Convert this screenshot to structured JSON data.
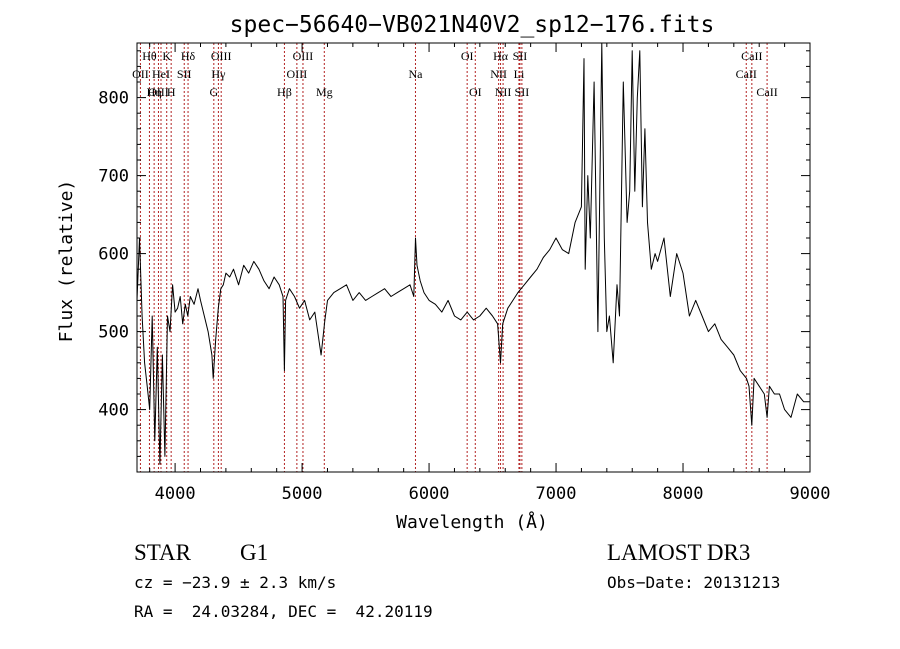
{
  "chart_data": {
    "type": "line",
    "title": "spec−56640−VB021N40V2_sp12−176.fits",
    "xlabel": "Wavelength (Å)",
    "ylabel": "Flux (relative)",
    "xlim": [
      3700,
      9000
    ],
    "ylim": [
      320,
      870
    ],
    "xticks": [
      4000,
      5000,
      6000,
      7000,
      8000,
      9000
    ],
    "yticks": [
      400,
      500,
      600,
      700,
      800
    ],
    "grid": false,
    "series": [
      {
        "values_note": "",
        "x": [
          3700,
          3720,
          3740,
          3760,
          3780,
          3800,
          3820,
          3840,
          3860,
          3880,
          3900,
          3920,
          3940,
          3960,
          3980,
          4000,
          4020,
          4040,
          4060,
          4080,
          4100,
          4120,
          4150,
          4180,
          4200,
          4230,
          4260,
          4290,
          4300,
          4320,
          4340,
          4360,
          4380,
          4400,
          4430,
          4460,
          4500,
          4540,
          4580,
          4620,
          4660,
          4700,
          4740,
          4780,
          4820,
          4850,
          4861,
          4870,
          4900,
          4940,
          4980,
          5020,
          5060,
          5100,
          5150,
          5180,
          5200,
          5250,
          5300,
          5350,
          5400,
          5450,
          5500,
          5550,
          5600,
          5650,
          5700,
          5750,
          5800,
          5850,
          5880,
          5893,
          5905,
          5930,
          5960,
          6000,
          6050,
          6100,
          6150,
          6200,
          6250,
          6300,
          6350,
          6400,
          6450,
          6500,
          6540,
          6563,
          6580,
          6620,
          6660,
          6700,
          6750,
          6800,
          6850,
          6900,
          6950,
          7000,
          7050,
          7100,
          7150,
          7200,
          7220,
          7230,
          7250,
          7270,
          7300,
          7330,
          7360,
          7380,
          7400,
          7420,
          7450,
          7480,
          7500,
          7530,
          7560,
          7580,
          7600,
          7620,
          7640,
          7660,
          7680,
          7700,
          7720,
          7750,
          7780,
          7800,
          7850,
          7900,
          7950,
          8000,
          8050,
          8100,
          8150,
          8200,
          8250,
          8300,
          8350,
          8400,
          8450,
          8500,
          8520,
          8542,
          8560,
          8600,
          8640,
          8662,
          8680,
          8720,
          8760,
          8800,
          8850,
          8900,
          8950,
          9000
        ],
        "y": [
          540,
          620,
          520,
          460,
          430,
          400,
          520,
          360,
          480,
          330,
          470,
          340,
          520,
          500,
          560,
          525,
          530,
          545,
          510,
          535,
          520,
          545,
          535,
          555,
          540,
          520,
          500,
          470,
          440,
          490,
          530,
          555,
          560,
          575,
          570,
          580,
          560,
          585,
          575,
          590,
          580,
          565,
          555,
          570,
          560,
          545,
          450,
          540,
          555,
          545,
          530,
          540,
          515,
          525,
          470,
          515,
          540,
          550,
          555,
          560,
          540,
          550,
          540,
          545,
          550,
          555,
          545,
          550,
          555,
          560,
          545,
          620,
          585,
          565,
          550,
          540,
          535,
          525,
          540,
          520,
          515,
          525,
          515,
          520,
          530,
          520,
          510,
          460,
          510,
          530,
          540,
          550,
          560,
          570,
          580,
          595,
          605,
          620,
          605,
          600,
          640,
          660,
          850,
          580,
          700,
          620,
          820,
          500,
          880,
          620,
          500,
          520,
          460,
          560,
          520,
          820,
          640,
          680,
          860,
          680,
          800,
          860,
          660,
          760,
          640,
          580,
          600,
          590,
          620,
          545,
          600,
          575,
          520,
          540,
          520,
          500,
          510,
          490,
          480,
          470,
          450,
          440,
          430,
          380,
          440,
          430,
          420,
          390,
          430,
          420,
          420,
          400,
          390,
          420,
          410,
          410
        ]
      }
    ],
    "lines": [
      {
        "label": "Hθ",
        "x": 3798,
        "row": 1
      },
      {
        "label": "OII",
        "x": 3727,
        "row": 2
      },
      {
        "label": "OIII",
        "x": 3869,
        "row": 3
      },
      {
        "label": "K",
        "x": 3934,
        "row": 1
      },
      {
        "label": "HeI",
        "x": 3889,
        "row": 2
      },
      {
        "label": "Hη",
        "x": 3835,
        "row": 3
      },
      {
        "label": "Hδ",
        "x": 4102,
        "row": 1
      },
      {
        "label": "SII",
        "x": 4072,
        "row": 2
      },
      {
        "label": "H",
        "x": 3969,
        "row": 3
      },
      {
        "label": "OIII",
        "x": 4363,
        "row": 1
      },
      {
        "label": "Hγ",
        "x": 4341,
        "row": 2
      },
      {
        "label": "G",
        "x": 4305,
        "row": 3
      },
      {
        "label": "OIII",
        "x": 5007,
        "row": 1
      },
      {
        "label": "OIII",
        "x": 4959,
        "row": 2
      },
      {
        "label": "Hβ",
        "x": 4861,
        "row": 3
      },
      {
        "label": "Mg",
        "x": 5175,
        "row": 3
      },
      {
        "label": "Na",
        "x": 5893,
        "row": 2
      },
      {
        "label": "OI",
        "x": 6300,
        "row": 1
      },
      {
        "label": "OI",
        "x": 6364,
        "row": 3
      },
      {
        "label": "Hα",
        "x": 6563,
        "row": 1
      },
      {
        "label": "NII",
        "x": 6548,
        "row": 2
      },
      {
        "label": "NII",
        "x": 6583,
        "row": 3
      },
      {
        "label": "SII",
        "x": 6716,
        "row": 1
      },
      {
        "label": "Li",
        "x": 6708,
        "row": 2
      },
      {
        "label": "SII",
        "x": 6731,
        "row": 3
      },
      {
        "label": "CaII",
        "x": 8542,
        "row": 1
      },
      {
        "label": "CaII",
        "x": 8498,
        "row": 2
      },
      {
        "label": "CaII",
        "x": 8662,
        "row": 3
      }
    ]
  },
  "info": {
    "class": "STAR",
    "subclass": "G1",
    "survey": "LAMOST DR3",
    "cz": "cz = −23.9 ± 2.3 km/s",
    "obs_date": "Obs−Date: 20131213",
    "coords": "RA =  24.03284, DEC =  42.20119"
  }
}
